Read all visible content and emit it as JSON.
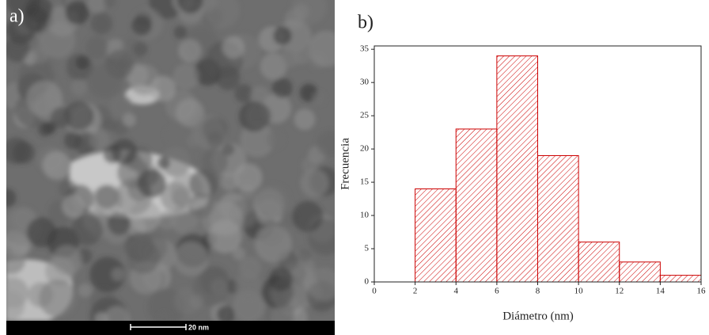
{
  "image_panel": {
    "label": "a)",
    "scale_bar": "20 nm"
  },
  "chart_data": {
    "type": "histogram",
    "panel_label": "b)",
    "x_label": "Diámetro (nm)",
    "y_label": "Frecuencia",
    "bins": [
      2,
      4,
      6,
      8,
      10,
      12,
      14,
      16
    ],
    "values": [
      14,
      23,
      34,
      19,
      6,
      3,
      1
    ],
    "color": "#cc0000",
    "xlim": [
      0,
      16
    ],
    "xticks": [
      0,
      2,
      4,
      6,
      8,
      10,
      12,
      14,
      16
    ],
    "ylim": [
      0,
      35.5
    ],
    "yticks": [
      0,
      5,
      10,
      15,
      20,
      25,
      30,
      35
    ]
  }
}
